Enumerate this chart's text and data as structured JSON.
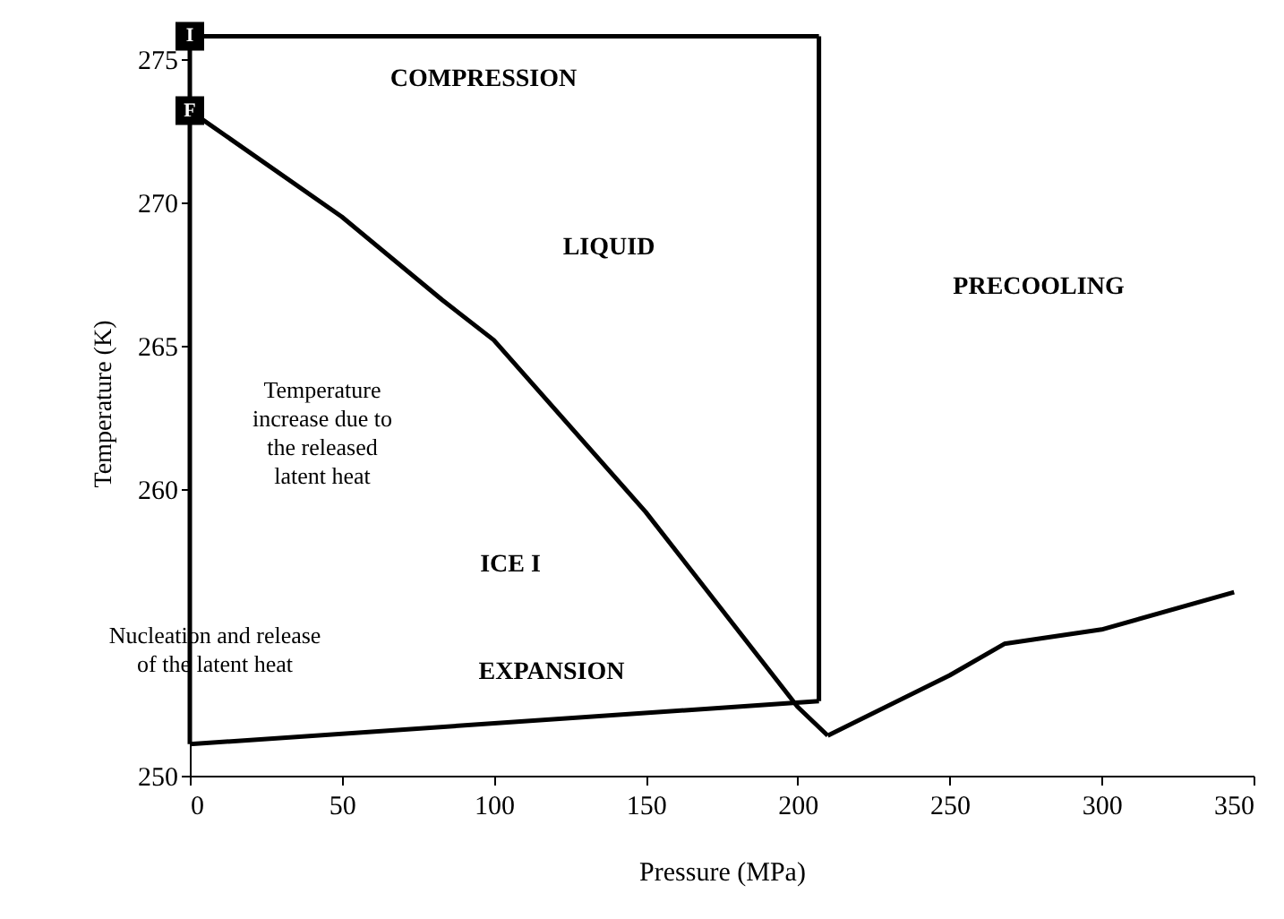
{
  "chart_data": {
    "type": "line",
    "xlabel": "Pressure (MPa)",
    "ylabel": "Temperature (K)",
    "xlim": [
      0,
      350
    ],
    "ylim": [
      250,
      276
    ],
    "xticks": [
      0,
      50,
      100,
      150,
      200,
      250,
      300,
      350
    ],
    "yticks": [
      250,
      260,
      265,
      270,
      275
    ],
    "grid": false,
    "line_style": "solid",
    "series": [
      {
        "color": "#000000",
        "x": [
          0,
          50,
          83,
          100,
          150,
          200,
          209.9
        ],
        "values": [
          273.2,
          269.5,
          266.6,
          265.2,
          259.2,
          252.4,
          251.4
        ]
      },
      {
        "color": "#000000",
        "x": [
          209.9,
          250,
          268,
          300,
          343.6
        ],
        "values": [
          251.4,
          253.5,
          254.6,
          255.1,
          256.4
        ]
      },
      {
        "color": "#000000",
        "x": [
          0,
          207
        ],
        "values": [
          275.8,
          275.8
        ]
      },
      {
        "color": "#000000",
        "x": [
          207,
          207
        ],
        "values": [
          275.8,
          252.6
        ]
      },
      {
        "color": "#000000",
        "x": [
          207,
          0
        ],
        "values": [
          252.6,
          251.1
        ]
      },
      {
        "color": "#000000",
        "x": [
          0,
          0
        ],
        "values": [
          251.1,
          275.8
        ]
      }
    ],
    "annotations": [
      "COMPRESSION",
      "PRECOOLING",
      "EXPANSION",
      "LIQUID",
      "ICE I",
      "Temperature\nincrease due to\nthe released\nlatent heat",
      "Nucleation and release\nof the latent heat",
      {
        "text": "I",
        "x": 0,
        "y": 275.8
      },
      {
        "text": "F",
        "x": 0,
        "y": 273.2
      }
    ]
  }
}
